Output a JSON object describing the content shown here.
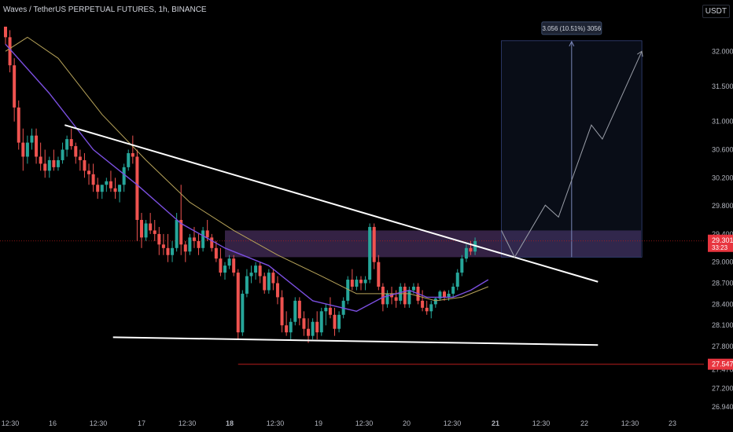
{
  "header": {
    "title": "Waves / TetherUS PERPETUAL FUTURES, 1h, BINANCE",
    "currency": "USDT"
  },
  "colors": {
    "background": "#000000",
    "up": "#26a69a",
    "down": "#ef5350",
    "ma_fast": "#7b4fe0",
    "ma_slow": "#b8a45a",
    "trendline": "#ffffff",
    "zone": "#8a5ab4",
    "target_box": "#2a3a6a",
    "level_line": "#b71c1c",
    "price_label": "#e8353f"
  },
  "chart_data": {
    "type": "candlestick",
    "xlabels": [
      "12:30",
      "16",
      "12:30",
      "17",
      "12:30",
      "18",
      "12:30",
      "19",
      "12:30",
      "20",
      "12:30",
      "21",
      "12:30",
      "22",
      "12:30",
      "23"
    ],
    "ylabels": [
      "32.000",
      "31.500",
      "31.000",
      "30.600",
      "30.200",
      "29.800",
      "29.400",
      "29.000",
      "28.700",
      "28.400",
      "28.100",
      "27.800",
      "27.470",
      "27.200",
      "26.940"
    ],
    "y_ticks": [
      32.0,
      31.5,
      31.0,
      30.6,
      30.2,
      29.8,
      29.4,
      29.0,
      28.7,
      28.4,
      28.1,
      27.8,
      27.47,
      27.2,
      26.94
    ],
    "ylim": [
      26.94,
      32.45
    ],
    "last_price": {
      "value": "29.301",
      "countdown": "33:23",
      "price": 29.301
    },
    "level_price": {
      "value": "27.547",
      "price": 27.547
    },
    "measure_label": "3.056 (10.51%) 3056",
    "ohlc": [
      [
        32.35,
        32.35,
        32.1,
        32.2
      ],
      [
        32.2,
        32.3,
        31.7,
        31.8
      ],
      [
        31.8,
        31.9,
        31.0,
        31.2
      ],
      [
        31.2,
        31.3,
        30.6,
        30.7
      ],
      [
        30.7,
        30.9,
        30.3,
        30.5
      ],
      [
        30.5,
        30.8,
        30.4,
        30.7
      ],
      [
        30.7,
        30.9,
        30.6,
        30.8
      ],
      [
        30.8,
        30.9,
        30.4,
        30.5
      ],
      [
        30.5,
        30.7,
        30.3,
        30.4
      ],
      [
        30.4,
        30.6,
        30.2,
        30.3
      ],
      [
        30.3,
        30.5,
        30.2,
        30.45
      ],
      [
        30.45,
        30.6,
        30.3,
        30.35
      ],
      [
        30.35,
        30.5,
        30.3,
        30.45
      ],
      [
        30.45,
        30.7,
        30.4,
        30.6
      ],
      [
        30.6,
        30.8,
        30.5,
        30.75
      ],
      [
        30.75,
        30.9,
        30.6,
        30.65
      ],
      [
        30.65,
        30.7,
        30.4,
        30.5
      ],
      [
        30.5,
        30.6,
        30.3,
        30.45
      ],
      [
        30.45,
        30.55,
        30.2,
        30.3
      ],
      [
        30.3,
        30.4,
        30.1,
        30.25
      ],
      [
        30.25,
        30.4,
        30.0,
        30.1
      ],
      [
        30.1,
        30.2,
        29.9,
        30.0
      ],
      [
        30.0,
        30.1,
        29.9,
        30.1
      ],
      [
        30.1,
        30.2,
        30.0,
        30.15
      ],
      [
        30.15,
        30.3,
        30.0,
        30.05
      ],
      [
        30.05,
        30.2,
        29.9,
        30.0
      ],
      [
        30.0,
        30.1,
        29.85,
        30.1
      ],
      [
        30.1,
        30.4,
        30.0,
        30.35
      ],
      [
        30.35,
        30.6,
        30.3,
        30.55
      ],
      [
        30.55,
        30.8,
        30.4,
        30.5
      ],
      [
        30.5,
        30.6,
        29.3,
        29.6
      ],
      [
        29.6,
        29.7,
        29.2,
        29.35
      ],
      [
        29.35,
        29.6,
        29.3,
        29.55
      ],
      [
        29.55,
        29.7,
        29.4,
        29.45
      ],
      [
        29.45,
        29.6,
        29.3,
        29.4
      ],
      [
        29.4,
        29.5,
        29.1,
        29.25
      ],
      [
        29.25,
        29.4,
        29.1,
        29.2
      ],
      [
        29.2,
        29.4,
        29.0,
        29.1
      ],
      [
        29.1,
        29.3,
        29.0,
        29.2
      ],
      [
        29.2,
        29.7,
        29.15,
        29.6
      ],
      [
        29.6,
        30.1,
        29.1,
        29.25
      ],
      [
        29.25,
        29.3,
        29.0,
        29.15
      ],
      [
        29.15,
        29.4,
        29.1,
        29.35
      ],
      [
        29.35,
        29.5,
        29.2,
        29.3
      ],
      [
        29.3,
        29.4,
        29.1,
        29.2
      ],
      [
        29.2,
        29.5,
        29.15,
        29.45
      ],
      [
        29.45,
        29.6,
        29.3,
        29.35
      ],
      [
        29.35,
        29.4,
        29.15,
        29.2
      ],
      [
        29.2,
        29.3,
        29.0,
        29.05
      ],
      [
        29.05,
        29.2,
        28.8,
        28.85
      ],
      [
        28.85,
        29.0,
        28.75,
        28.95
      ],
      [
        28.95,
        29.1,
        28.9,
        29.05
      ],
      [
        29.05,
        29.1,
        28.8,
        28.85
      ],
      [
        28.85,
        28.9,
        27.9,
        28.0
      ],
      [
        28.0,
        28.6,
        27.95,
        28.55
      ],
      [
        28.55,
        28.9,
        28.5,
        28.8
      ],
      [
        28.8,
        28.95,
        28.7,
        28.85
      ],
      [
        28.85,
        29.0,
        28.75,
        28.95
      ],
      [
        28.95,
        29.0,
        28.7,
        28.8
      ],
      [
        28.8,
        28.85,
        28.55,
        28.6
      ],
      [
        28.6,
        28.9,
        28.55,
        28.85
      ],
      [
        28.85,
        28.9,
        28.6,
        28.7
      ],
      [
        28.7,
        28.8,
        28.4,
        28.5
      ],
      [
        28.5,
        28.6,
        28.0,
        28.1
      ],
      [
        28.1,
        28.3,
        27.95,
        28.0
      ],
      [
        28.0,
        28.2,
        27.9,
        28.15
      ],
      [
        28.15,
        28.5,
        28.1,
        28.45
      ],
      [
        28.45,
        28.5,
        28.1,
        28.2
      ],
      [
        28.2,
        28.3,
        27.95,
        28.05
      ],
      [
        28.05,
        28.2,
        27.85,
        27.95
      ],
      [
        27.95,
        28.2,
        27.9,
        28.15
      ],
      [
        28.15,
        28.3,
        27.9,
        28.0
      ],
      [
        28.0,
        28.35,
        27.95,
        28.3
      ],
      [
        28.3,
        28.4,
        28.1,
        28.35
      ],
      [
        28.35,
        28.5,
        28.2,
        28.25
      ],
      [
        28.25,
        28.35,
        27.95,
        28.05
      ],
      [
        28.05,
        28.3,
        28.0,
        28.25
      ],
      [
        28.25,
        28.5,
        28.2,
        28.45
      ],
      [
        28.45,
        28.8,
        28.4,
        28.75
      ],
      [
        28.75,
        28.9,
        28.6,
        28.65
      ],
      [
        28.65,
        28.8,
        28.6,
        28.75
      ],
      [
        28.75,
        28.8,
        28.6,
        28.7
      ],
      [
        28.7,
        28.8,
        28.6,
        28.75
      ],
      [
        28.75,
        29.55,
        28.7,
        29.5
      ],
      [
        29.5,
        29.55,
        28.9,
        29.0
      ],
      [
        29.0,
        29.1,
        28.6,
        28.65
      ],
      [
        28.65,
        28.7,
        28.3,
        28.4
      ],
      [
        28.4,
        28.6,
        28.35,
        28.55
      ],
      [
        28.55,
        28.65,
        28.4,
        28.5
      ],
      [
        28.5,
        28.6,
        28.35,
        28.45
      ],
      [
        28.45,
        28.7,
        28.4,
        28.65
      ],
      [
        28.65,
        28.7,
        28.35,
        28.4
      ],
      [
        28.4,
        28.65,
        28.35,
        28.6
      ],
      [
        28.6,
        28.7,
        28.55,
        28.65
      ],
      [
        28.65,
        28.7,
        28.4,
        28.45
      ],
      [
        28.45,
        28.6,
        28.3,
        28.35
      ],
      [
        28.35,
        28.45,
        28.25,
        28.3
      ],
      [
        28.3,
        28.45,
        28.2,
        28.4
      ],
      [
        28.4,
        28.5,
        28.35,
        28.48
      ],
      [
        28.48,
        28.6,
        28.45,
        28.58
      ],
      [
        28.58,
        28.6,
        28.45,
        28.5
      ],
      [
        28.5,
        28.6,
        28.45,
        28.55
      ],
      [
        28.55,
        28.7,
        28.5,
        28.65
      ],
      [
        28.65,
        28.9,
        28.6,
        28.85
      ],
      [
        28.85,
        29.1,
        28.8,
        29.05
      ],
      [
        29.05,
        29.25,
        29.0,
        29.2
      ],
      [
        29.2,
        29.3,
        29.1,
        29.15
      ],
      [
        29.15,
        29.35,
        29.1,
        29.3
      ]
    ],
    "ma_fast": [
      [
        0,
        32.1
      ],
      [
        10,
        31.4
      ],
      [
        20,
        30.6
      ],
      [
        30,
        30.1
      ],
      [
        40,
        29.55
      ],
      [
        50,
        29.2
      ],
      [
        60,
        28.95
      ],
      [
        70,
        28.45
      ],
      [
        80,
        28.3
      ],
      [
        86,
        28.5
      ],
      [
        92,
        28.6
      ],
      [
        96,
        28.5
      ],
      [
        102,
        28.5
      ],
      [
        106,
        28.6
      ],
      [
        110,
        28.75
      ]
    ],
    "ma_slow": [
      [
        0,
        32.0
      ],
      [
        5,
        32.2
      ],
      [
        12,
        31.9
      ],
      [
        22,
        31.1
      ],
      [
        32,
        30.45
      ],
      [
        42,
        29.85
      ],
      [
        52,
        29.45
      ],
      [
        62,
        29.1
      ],
      [
        72,
        28.8
      ],
      [
        80,
        28.55
      ],
      [
        86,
        28.55
      ],
      [
        92,
        28.55
      ],
      [
        98,
        28.45
      ],
      [
        104,
        28.5
      ],
      [
        110,
        28.65
      ]
    ],
    "trendline_upper": [
      [
        13.5,
        30.95
      ],
      [
        135,
        28.72
      ]
    ],
    "trendline_lower": [
      [
        24.5,
        27.93
      ],
      [
        135,
        27.82
      ]
    ],
    "zone": {
      "top": 29.45,
      "bottom": 29.07,
      "start_index": 50
    },
    "projection": [
      [
        113,
        29.45
      ],
      [
        116,
        29.07
      ],
      [
        123,
        29.81
      ],
      [
        126,
        29.64
      ],
      [
        133.5,
        30.95
      ],
      [
        136,
        30.75
      ],
      [
        145,
        32.0
      ]
    ],
    "target_box": {
      "top": 32.15,
      "bottom": 29.07,
      "start_index": 113,
      "end_index": 145
    }
  }
}
